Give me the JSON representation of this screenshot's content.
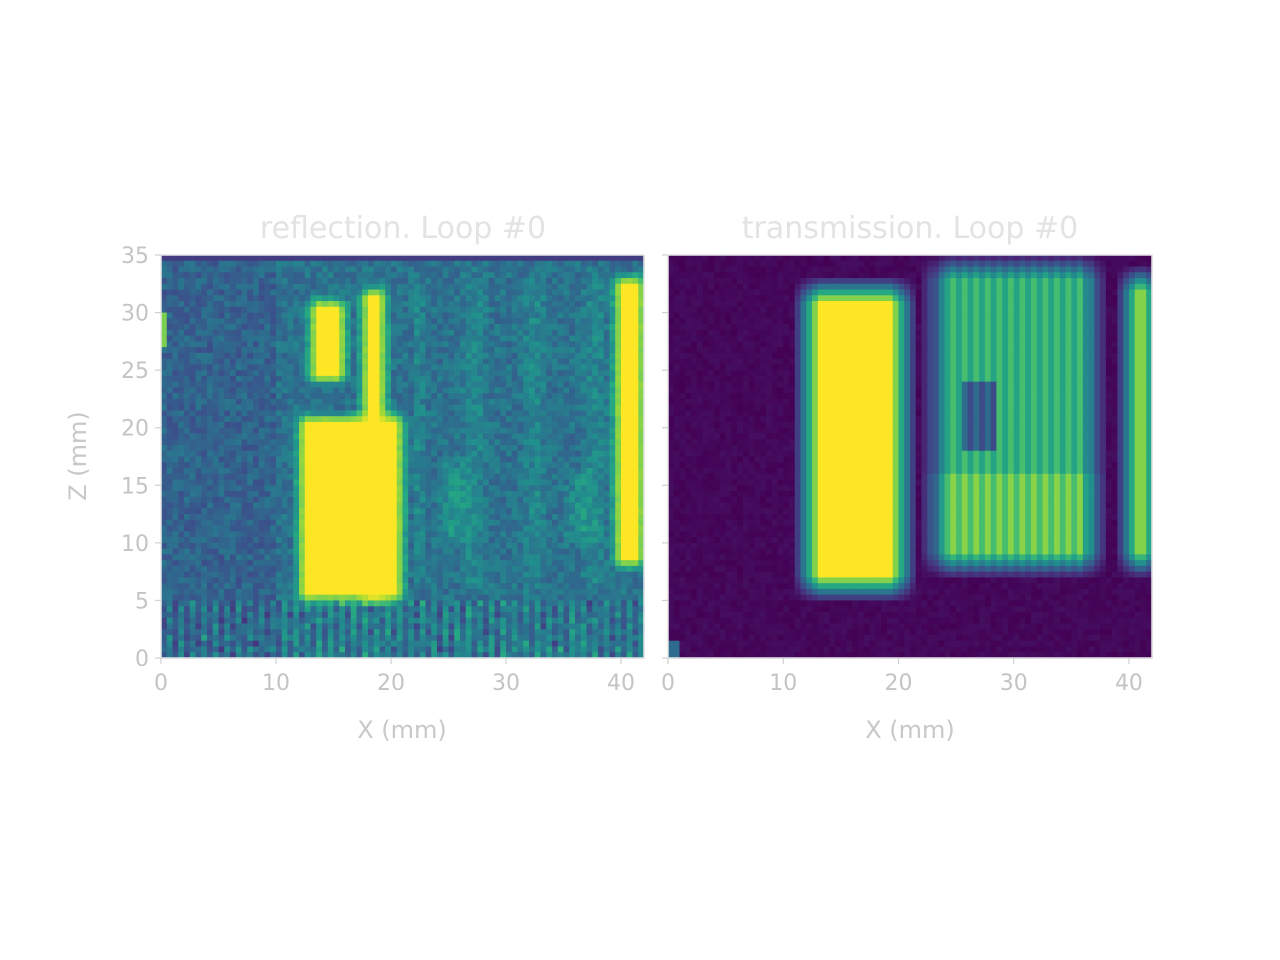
{
  "chart_data": [
    {
      "type": "heatmap",
      "title": "reflection. Loop #0",
      "xlabel": "X (mm)",
      "ylabel": "Z (mm)",
      "xlim": [
        0,
        42
      ],
      "ylim": [
        0,
        35
      ],
      "xticks": [
        0,
        10,
        20,
        30,
        40
      ],
      "yticks": [
        0,
        5,
        10,
        15,
        20,
        25,
        30,
        35
      ],
      "colormap": "viridis",
      "colors": {
        "low": "#440154",
        "mid": "#21918c",
        "high": "#fde725"
      },
      "bright_regions_mm": [
        {
          "x": [
            12,
            21
          ],
          "z": [
            5,
            21
          ],
          "level": 1.0
        },
        {
          "x": [
            13,
            16
          ],
          "z": [
            24,
            31
          ],
          "level": 1.0
        },
        {
          "x": [
            17.5,
            19.5
          ],
          "z": [
            5,
            32
          ],
          "level": 1.0
        },
        {
          "x": [
            39.5,
            42
          ],
          "z": [
            8,
            33
          ],
          "level": 1.0
        }
      ]
    },
    {
      "type": "heatmap",
      "title": "transmission. Loop #0",
      "xlabel": "X (mm)",
      "ylabel": "",
      "xlim": [
        0,
        42
      ],
      "ylim": [
        0,
        35
      ],
      "xticks": [
        0,
        10,
        20,
        30,
        40
      ],
      "yticks": [],
      "colormap": "viridis",
      "colors": {
        "low": "#440154",
        "mid": "#21918c",
        "high": "#fde725"
      },
      "bright_regions_mm": [
        {
          "x": [
            12,
            20.5
          ],
          "z": [
            6,
            32
          ],
          "level": 1.0
        },
        {
          "x": [
            23,
            37
          ],
          "z": [
            8,
            34
          ],
          "level": 0.62
        },
        {
          "x": [
            40,
            42
          ],
          "z": [
            8,
            33
          ],
          "level": 1.0
        }
      ]
    }
  ]
}
